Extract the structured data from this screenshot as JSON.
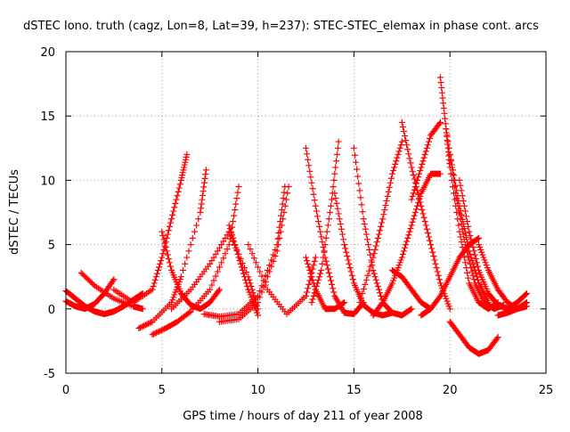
{
  "chart_data": {
    "type": "scatter",
    "title": "dSTEC Iono. truth (cagz, Lon=8, Lat=39, h=237): STEC-STEC_elemax in phase cont. arcs",
    "xlabel": "GPS time / hours of day 211 of year 2008",
    "ylabel": "dSTEC  / TECUs",
    "xlim": [
      0,
      25
    ],
    "ylim": [
      -5,
      20
    ],
    "xticks": [
      "0",
      "5",
      "10",
      "15",
      "20",
      "25"
    ],
    "yticks": [
      "-5",
      "0",
      "5",
      "10",
      "15",
      "20"
    ],
    "grid": true,
    "marker": "+",
    "colors": {
      "series": "#ff0000",
      "grid": "#a0a0a0",
      "axis": "#000000"
    },
    "series": [
      {
        "x": [
          0.0,
          0.5,
          1.0,
          1.5,
          2.0,
          2.5
        ],
        "y": [
          0.6,
          0.2,
          0.0,
          0.4,
          1.2,
          2.3
        ]
      },
      {
        "x": [
          0.0,
          0.5,
          1.0,
          1.5,
          2.0,
          2.5,
          3.0,
          3.5,
          4.0
        ],
        "y": [
          1.4,
          0.8,
          0.2,
          -0.2,
          -0.4,
          -0.2,
          0.2,
          0.7,
          1.2
        ]
      },
      {
        "x": [
          0.8,
          1.5,
          2.5,
          3.5,
          4.0
        ],
        "y": [
          2.8,
          1.8,
          0.8,
          0.2,
          0.0
        ]
      },
      {
        "x": [
          2.5,
          3.5,
          4.5,
          5.0,
          5.5,
          6.0,
          6.3
        ],
        "y": [
          1.5,
          0.5,
          1.5,
          4.0,
          7.0,
          10.0,
          12.0
        ]
      },
      {
        "x": [
          3.8,
          4.5,
          5.5,
          6.0,
          7.0,
          7.3
        ],
        "y": [
          -1.5,
          -1.0,
          0.5,
          2.5,
          7.5,
          10.8
        ]
      },
      {
        "x": [
          4.5,
          5.2,
          5.8,
          6.5,
          7.5,
          8.5,
          9.0
        ],
        "y": [
          -2.0,
          -1.5,
          -1.0,
          -0.2,
          1.5,
          5.0,
          9.5
        ]
      },
      {
        "x": [
          5.0,
          5.5,
          6.0,
          6.5,
          7.0,
          7.5,
          8.0
        ],
        "y": [
          6.0,
          3.0,
          1.2,
          0.3,
          0.0,
          0.5,
          1.5
        ]
      },
      {
        "x": [
          5.5,
          6.5,
          7.5,
          8.5,
          9.5,
          10.0
        ],
        "y": [
          0.0,
          1.5,
          3.5,
          6.0,
          2.5,
          0.0
        ]
      },
      {
        "x": [
          7.2,
          8.0,
          9.0,
          10.0,
          11.0,
          11.4
        ],
        "y": [
          -0.4,
          -0.6,
          -0.4,
          1.0,
          5.0,
          9.5
        ]
      },
      {
        "x": [
          8.0,
          9.0,
          10.0,
          11.0,
          11.6
        ],
        "y": [
          -1.0,
          -0.8,
          0.5,
          4.5,
          9.5
        ]
      },
      {
        "x": [
          8.5,
          9.0,
          9.5,
          10.0
        ],
        "y": [
          6.5,
          4.0,
          1.5,
          -0.5
        ]
      },
      {
        "x": [
          9.5,
          10.5,
          11.5,
          12.5,
          13.0
        ],
        "y": [
          5.0,
          1.5,
          -0.4,
          1.0,
          4.0
        ]
      },
      {
        "x": [
          12.5,
          13.0,
          13.5,
          14.0,
          14.5,
          15.0,
          15.5
        ],
        "y": [
          12.5,
          8.0,
          4.0,
          1.0,
          -0.3,
          -0.4,
          0.5
        ]
      },
      {
        "x": [
          12.5,
          13.0,
          13.5,
          14.0,
          14.5
        ],
        "y": [
          4.0,
          1.5,
          0.0,
          0.0,
          0.5
        ]
      },
      {
        "x": [
          12.8,
          13.3,
          13.8,
          14.2
        ],
        "y": [
          0.5,
          3.0,
          8.0,
          13.0
        ]
      },
      {
        "x": [
          14.0,
          14.5,
          15.0,
          15.5,
          16.0,
          16.5,
          17.0
        ],
        "y": [
          9.0,
          5.0,
          2.0,
          0.3,
          -0.3,
          -0.5,
          -0.3
        ]
      },
      {
        "x": [
          15.0,
          15.5,
          16.0,
          16.5,
          17.0,
          17.5,
          18.0
        ],
        "y": [
          12.5,
          7.0,
          3.0,
          0.5,
          -0.3,
          -0.5,
          0.0
        ]
      },
      {
        "x": [
          15.3,
          16.0,
          16.5,
          17.0,
          17.5
        ],
        "y": [
          0.5,
          4.0,
          7.0,
          10.5,
          13.0
        ]
      },
      {
        "x": [
          16.0,
          16.5,
          17.0,
          17.5,
          18.0,
          18.5,
          19.0,
          19.5
        ],
        "y": [
          -0.5,
          0.5,
          2.0,
          4.0,
          6.5,
          9.0,
          10.5,
          10.5
        ]
      },
      {
        "x": [
          17.0,
          17.5,
          18.0,
          18.5,
          19.0
        ],
        "y": [
          3.0,
          2.5,
          1.5,
          0.5,
          0.0
        ]
      },
      {
        "x": [
          17.5,
          18.0,
          18.5,
          19.0,
          19.5,
          20.0
        ],
        "y": [
          14.5,
          11.0,
          8.0,
          5.0,
          2.0,
          0.0
        ]
      },
      {
        "x": [
          18.0,
          18.5,
          19.0,
          19.5
        ],
        "y": [
          8.5,
          11.0,
          13.5,
          14.5
        ]
      },
      {
        "x": [
          19.5,
          19.8,
          20.0,
          20.5,
          21.0,
          21.5,
          22.0,
          22.5
        ],
        "y": [
          18.0,
          14.0,
          11.0,
          6.0,
          2.0,
          0.5,
          0.0,
          0.5
        ]
      },
      {
        "x": [
          19.8,
          20.3,
          20.8,
          21.3,
          21.8,
          22.3,
          22.8
        ],
        "y": [
          14.0,
          9.0,
          5.0,
          2.0,
          0.5,
          0.0,
          0.3
        ]
      },
      {
        "x": [
          20.0,
          20.5,
          21.0,
          21.5,
          22.0
        ],
        "y": [
          12.0,
          8.0,
          4.5,
          2.0,
          0.5
        ]
      },
      {
        "x": [
          20.5,
          21.0,
          21.5,
          22.0,
          22.5,
          23.0,
          23.5,
          24.0
        ],
        "y": [
          10.0,
          6.0,
          3.0,
          1.2,
          0.3,
          0.0,
          0.5,
          1.2
        ]
      },
      {
        "x": [
          21.5,
          22.0,
          22.5,
          23.0,
          23.5,
          24.0
        ],
        "y": [
          5.0,
          3.0,
          1.5,
          0.5,
          0.0,
          0.2
        ]
      },
      {
        "x": [
          20.0,
          20.5,
          21.0,
          21.5,
          22.0,
          22.5
        ],
        "y": [
          -1.0,
          -2.0,
          -3.0,
          -3.5,
          -3.2,
          -2.2
        ]
      },
      {
        "x": [
          18.5,
          19.0,
          19.5,
          20.0,
          20.5,
          21.0,
          21.5
        ],
        "y": [
          -0.5,
          0.0,
          1.0,
          2.5,
          4.0,
          5.0,
          5.5
        ]
      },
      {
        "x": [
          22.5,
          23.0,
          23.5,
          24.0
        ],
        "y": [
          -0.5,
          -0.3,
          0.0,
          0.5
        ]
      }
    ]
  }
}
